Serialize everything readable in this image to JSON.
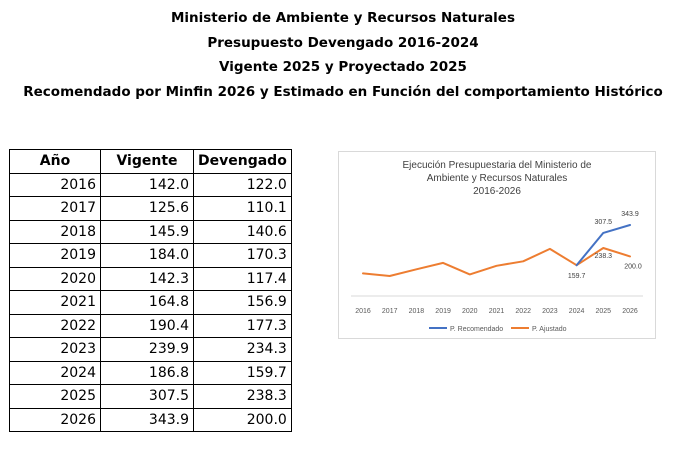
{
  "header": {
    "line1": "Ministerio de Ambiente y Recursos Naturales",
    "line2": "Presupuesto Devengado 2016-2024",
    "line3": "Vigente 2025 y Proyectado 2025",
    "line4": "Recomendado por Minfin 2026 y Estimado en Función del comportamiento Histórico"
  },
  "table": {
    "columns": [
      "Año",
      "Vigente",
      "Devengado"
    ],
    "rows": [
      [
        "2016",
        "142.0",
        "122.0"
      ],
      [
        "2017",
        "125.6",
        "110.1"
      ],
      [
        "2018",
        "145.9",
        "140.6"
      ],
      [
        "2019",
        "184.0",
        "170.3"
      ],
      [
        "2020",
        "142.3",
        "117.4"
      ],
      [
        "2021",
        "164.8",
        "156.9"
      ],
      [
        "2022",
        "190.4",
        "177.3"
      ],
      [
        "2023",
        "239.9",
        "234.3"
      ],
      [
        "2024",
        "186.8",
        "159.7"
      ],
      [
        "2025",
        "307.5",
        "238.3"
      ],
      [
        "2026",
        "343.9",
        "200.0"
      ]
    ]
  },
  "chart_data": {
    "type": "line",
    "title": "Ejecución Presupuestaria del Ministerio de Ambiente y Recursos Naturales 2016-2026",
    "title_lines": [
      "Ejecución Presupuestaria del Ministerio de",
      "Ambiente y Recursos Naturales",
      "2016-2026"
    ],
    "categories": [
      "2016",
      "2017",
      "2018",
      "2019",
      "2020",
      "2021",
      "2022",
      "2023",
      "2024",
      "2025",
      "2026"
    ],
    "series": [
      {
        "name": "P. Recomendado",
        "color": "#4472c4",
        "values": [
          null,
          null,
          null,
          null,
          null,
          null,
          null,
          null,
          159.7,
          307.5,
          343.9
        ]
      },
      {
        "name": "P. Ajustado",
        "color": "#ed7d31",
        "values": [
          122.0,
          110.1,
          140.6,
          170.3,
          117.4,
          156.9,
          177.3,
          234.3,
          159.7,
          238.3,
          200.0
        ]
      }
    ],
    "data_labels": [
      {
        "category": "2024",
        "value": "159.7"
      },
      {
        "category": "2025",
        "value": "307.5"
      },
      {
        "category": "2026",
        "value": "343.9"
      },
      {
        "category": "2025",
        "value": "238.3"
      },
      {
        "category": "2026",
        "value": "200.0"
      }
    ],
    "legend_position": "bottom",
    "grid": false,
    "xlabel": "",
    "ylabel": ""
  }
}
